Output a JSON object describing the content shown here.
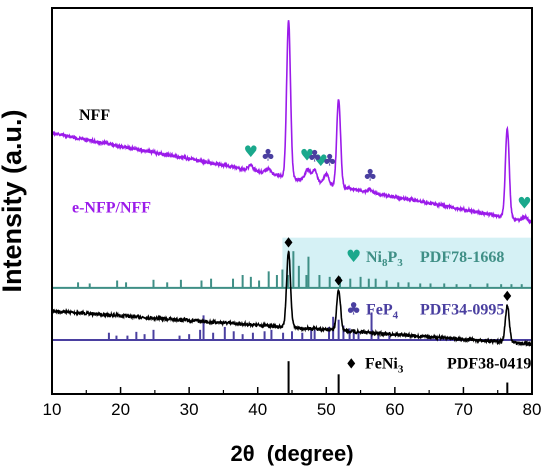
{
  "chart_data": {
    "type": "line",
    "xlabel_main": "2θ",
    "xlabel_unit": "(degree)",
    "ylabel": "Intensity (a.u.)",
    "xlim": [
      10,
      80
    ],
    "xticks": [
      10,
      20,
      30,
      40,
      50,
      60,
      70,
      80
    ],
    "y_ticks_shown": false,
    "colors": {
      "nff": "#000000",
      "enfp": "#9b1bea",
      "ni8p3": "#3f8f86",
      "fep4": "#4a3fa0",
      "feni3": "#000000",
      "ni8p3_marker": "#1aa88c",
      "fep4_marker": "#4a3fa0",
      "highlight": "#d5f1f5"
    },
    "series": [
      {
        "name": "NFF",
        "color_key": "nff",
        "baseline": [
          [
            10,
            0.785
          ],
          [
            80,
            0.87
          ]
        ],
        "peaks": [
          [
            44.5,
            0.195
          ],
          [
            51.8,
            0.105
          ],
          [
            76.4,
            0.095
          ]
        ],
        "noise": 0.004
      },
      {
        "name": "e-NFP/NFF",
        "color_key": "enfp",
        "baseline": [
          [
            10,
            0.325
          ],
          [
            80,
            0.555
          ]
        ],
        "peaks": [
          [
            39.0,
            0.012
          ],
          [
            41.5,
            0.012
          ],
          [
            44.5,
            0.405
          ],
          [
            47.3,
            0.03
          ],
          [
            48.3,
            0.03
          ],
          [
            50.0,
            0.026
          ],
          [
            51.8,
            0.225
          ],
          [
            56.4,
            0.008
          ],
          [
            76.4,
            0.23
          ],
          [
            79.0,
            0.01
          ]
        ],
        "noise": 0.004
      }
    ],
    "markers": [
      {
        "x": 44.5,
        "symbol": "♦",
        "series": "NFF",
        "color_key": "nff"
      },
      {
        "x": 51.8,
        "symbol": "♦",
        "series": "NFF",
        "color_key": "nff"
      },
      {
        "x": 76.4,
        "symbol": "♦",
        "series": "NFF",
        "color_key": "nff"
      },
      {
        "x": 39.0,
        "symbol": "♥",
        "series": "e-NFP/NFF",
        "color_key": "ni8p3_marker"
      },
      {
        "x": 47.2,
        "symbol": "♥",
        "series": "e-NFP/NFF",
        "color_key": "ni8p3_marker"
      },
      {
        "x": 49.2,
        "symbol": "♥",
        "series": "e-NFP/NFF",
        "color_key": "ni8p3_marker"
      },
      {
        "x": 78.9,
        "symbol": "♥",
        "series": "e-NFP/NFF",
        "color_key": "ni8p3_marker"
      },
      {
        "x": 41.5,
        "symbol": "♣",
        "series": "e-NFP/NFF",
        "color_key": "fep4_marker"
      },
      {
        "x": 48.3,
        "symbol": "♣",
        "series": "e-NFP/NFF",
        "color_key": "fep4_marker"
      },
      {
        "x": 50.5,
        "symbol": "♣",
        "series": "e-NFP/NFF",
        "color_key": "fep4_marker"
      },
      {
        "x": 56.4,
        "symbol": "♣",
        "series": "e-NFP/NFF",
        "color_key": "fep4_marker"
      }
    ],
    "references": [
      {
        "symbol": "♥",
        "formula": "Ni",
        "sub1": "8",
        "mid": "P",
        "sub2": "3",
        "pdf": "PDF78-1668",
        "color_key": "ni8p3",
        "symbol_color_key": "ni8p3_marker",
        "highlight": true,
        "lines": [
          [
            13.8,
            0.15
          ],
          [
            15.5,
            0.12
          ],
          [
            19.5,
            0.2
          ],
          [
            20.8,
            0.15
          ],
          [
            24.8,
            0.22
          ],
          [
            26.8,
            0.15
          ],
          [
            28.8,
            0.22
          ],
          [
            31.8,
            0.2
          ],
          [
            33.2,
            0.25
          ],
          [
            36.4,
            0.25
          ],
          [
            37.8,
            0.35
          ],
          [
            39.0,
            0.3
          ],
          [
            40.2,
            0.2
          ],
          [
            41.6,
            0.45
          ],
          [
            42.8,
            0.35
          ],
          [
            43.6,
            0.5
          ],
          [
            44.4,
            0.35
          ],
          [
            45.2,
            1.0
          ],
          [
            46.0,
            0.6
          ],
          [
            47.1,
            0.35
          ],
          [
            47.4,
            0.85
          ],
          [
            49.0,
            0.35
          ],
          [
            50.5,
            0.3
          ],
          [
            52.0,
            0.3
          ],
          [
            53.5,
            0.25
          ],
          [
            55.0,
            0.3
          ],
          [
            56.2,
            0.25
          ],
          [
            57.2,
            0.25
          ],
          [
            58.8,
            0.2
          ],
          [
            60.5,
            0.15
          ],
          [
            62.0,
            0.15
          ],
          [
            63.7,
            0.12
          ],
          [
            65.2,
            0.12
          ],
          [
            67.2,
            0.12
          ],
          [
            69.0,
            0.1
          ],
          [
            71.0,
            0.1
          ],
          [
            73.5,
            0.12
          ],
          [
            75.5,
            0.1
          ],
          [
            77.0,
            0.1
          ],
          [
            78.5,
            0.1
          ]
        ]
      },
      {
        "symbol": "♣",
        "formula": "FeP",
        "sub1": "4",
        "mid": "",
        "sub2": "",
        "pdf": "PDF34-0995",
        "color_key": "fep4",
        "symbol_color_key": "fep4_marker",
        "highlight": false,
        "lines": [
          [
            18.3,
            0.25
          ],
          [
            19.4,
            0.15
          ],
          [
            21.0,
            0.15
          ],
          [
            22.3,
            0.28
          ],
          [
            23.5,
            0.2
          ],
          [
            24.8,
            0.35
          ],
          [
            28.6,
            0.15
          ],
          [
            30.0,
            0.2
          ],
          [
            31.6,
            0.35
          ],
          [
            32.1,
            0.85
          ],
          [
            33.5,
            0.25
          ],
          [
            35.2,
            0.45
          ],
          [
            36.5,
            0.3
          ],
          [
            37.8,
            0.2
          ],
          [
            39.3,
            0.25
          ],
          [
            41.0,
            0.3
          ],
          [
            42.0,
            0.35
          ],
          [
            43.7,
            0.25
          ],
          [
            45.0,
            0.3
          ],
          [
            46.5,
            0.25
          ],
          [
            47.8,
            0.4
          ],
          [
            48.3,
            0.35
          ],
          [
            50.4,
            0.45
          ],
          [
            51.0,
            0.8
          ],
          [
            51.8,
            0.7
          ],
          [
            52.5,
            0.5
          ],
          [
            53.4,
            0.4
          ],
          [
            54.0,
            0.35
          ],
          [
            54.7,
            0.3
          ],
          [
            56.6,
            0.95
          ],
          [
            57.6,
            0.25
          ],
          [
            59.2,
            0.15
          ]
        ]
      },
      {
        "symbol": "♦",
        "formula": "FeNi",
        "sub1": "3",
        "mid": "",
        "sub2": "",
        "pdf": "PDF38-0419",
        "color_key": "feni3",
        "symbol_color_key": "feni3",
        "highlight": false,
        "lines": [
          [
            44.5,
            1.0
          ],
          [
            51.8,
            0.6
          ],
          [
            76.4,
            0.35
          ]
        ]
      }
    ]
  }
}
